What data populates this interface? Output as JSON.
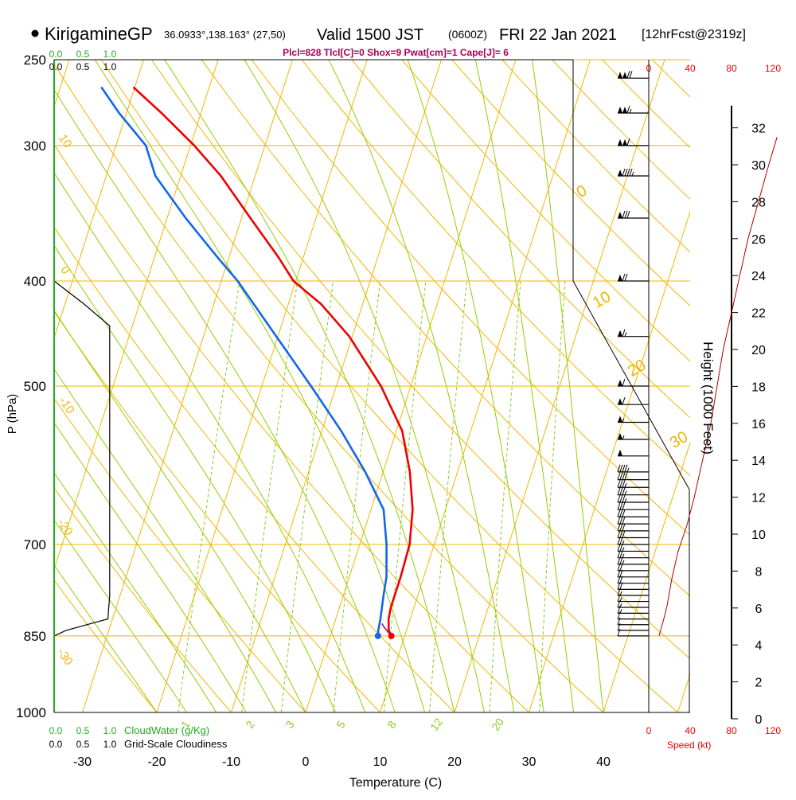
{
  "header": {
    "station": "KirigamineGP",
    "coords": "36.0933°,138.163° (27,50)",
    "valid": "Valid 1500 JST",
    "zulu": "(0600Z)",
    "date": "FRI 22 Jan 2021",
    "forecast": "[12hrFcst@2319z]",
    "indices": "Plcl=828 Tlcl[C]=0 Shox=9 Pwat[cm]=1 Cape[J]= 6"
  },
  "colors": {
    "temperature": "#ee0000",
    "dewpoint": "#1166ee",
    "isotherm": "#f2b500",
    "dry_adiabat": "#f2b500",
    "moist_adiabat": "#99cc00",
    "mixing_ratio": "#88cc22",
    "cloud_water": "#22aa22",
    "indices": "#aa0055",
    "speed": "#ee0000"
  },
  "chart_data": {
    "type": "skew-t",
    "xlabel": "Temperature (C)",
    "ylabel": "P (hPa)",
    "y2label": "Height (1000 Feet)",
    "temp_ticks": [
      "-30",
      "-20",
      "-10",
      "0",
      "10",
      "20",
      "30",
      "40"
    ],
    "pressure_ticks": [
      "250",
      "300",
      "400",
      "500",
      "700",
      "850",
      "1000"
    ],
    "height_ticks": [
      "0",
      "2",
      "4",
      "6",
      "8",
      "10",
      "12",
      "14",
      "16",
      "18",
      "20",
      "22",
      "24",
      "26",
      "28",
      "30",
      "32"
    ],
    "mixing_ratio_labels": [
      "1",
      "2",
      "3",
      "5",
      "8",
      "12",
      "20"
    ],
    "dry_adiabat_labels": [
      "10",
      "0",
      "-10",
      "-20",
      "-30"
    ],
    "moist_adiabat_labels": [
      "0",
      "10",
      "20",
      "30"
    ],
    "cloud_water": {
      "label": "CloudWater (g/Kg)",
      "ticks": [
        "0.0",
        "0.5",
        "1.0"
      ]
    },
    "cloudiness": {
      "label": "Grid-Scale Cloudiness",
      "ticks": [
        "0.0",
        "0.5",
        "1.0"
      ]
    },
    "speed": {
      "label": "Speed (kt)",
      "ticks": [
        "0",
        "40",
        "80",
        "120"
      ]
    },
    "temperature": [
      {
        "p": 850,
        "t": 8.2
      },
      {
        "p": 840,
        "t": 7.6
      },
      {
        "p": 820,
        "t": 7.1
      },
      {
        "p": 800,
        "t": 6.9
      },
      {
        "p": 750,
        "t": 6.9
      },
      {
        "p": 700,
        "t": 6.7
      },
      {
        "p": 650,
        "t": 5.6
      },
      {
        "p": 600,
        "t": 3.6
      },
      {
        "p": 550,
        "t": 0.8
      },
      {
        "p": 500,
        "t": -4.0
      },
      {
        "p": 450,
        "t": -10.4
      },
      {
        "p": 420,
        "t": -15.6
      },
      {
        "p": 400,
        "t": -20.3
      },
      {
        "p": 380,
        "t": -23.4
      },
      {
        "p": 350,
        "t": -28.8
      },
      {
        "p": 320,
        "t": -34.6
      },
      {
        "p": 300,
        "t": -39.5
      },
      {
        "p": 280,
        "t": -45.3
      },
      {
        "p": 265,
        "t": -50.2
      }
    ],
    "dewpoint": [
      {
        "p": 850,
        "t": 6.4
      },
      {
        "p": 840,
        "t": 6.2
      },
      {
        "p": 820,
        "t": 6.0
      },
      {
        "p": 780,
        "t": 5.4
      },
      {
        "p": 750,
        "t": 5.0
      },
      {
        "p": 700,
        "t": 3.6
      },
      {
        "p": 650,
        "t": 1.7
      },
      {
        "p": 600,
        "t": -2.4
      },
      {
        "p": 550,
        "t": -7.4
      },
      {
        "p": 500,
        "t": -13.4
      },
      {
        "p": 450,
        "t": -20.2
      },
      {
        "p": 400,
        "t": -27.8
      },
      {
        "p": 380,
        "t": -31.6
      },
      {
        "p": 350,
        "t": -37.5
      },
      {
        "p": 320,
        "t": -43.4
      },
      {
        "p": 300,
        "t": -46.0
      },
      {
        "p": 280,
        "t": -51.0
      },
      {
        "p": 265,
        "t": -54.5
      }
    ],
    "parcel": [
      {
        "p": 850,
        "t": 8.2
      },
      {
        "p": 835,
        "t": 6.9
      },
      {
        "p": 828,
        "t": 6.4
      }
    ],
    "cloudiness_profile": [
      {
        "p": 850,
        "c": 0.0
      },
      {
        "p": 840,
        "c": 0.2
      },
      {
        "p": 820,
        "c": 0.9
      },
      {
        "p": 780,
        "c": 0.93
      },
      {
        "p": 700,
        "c": 0.93
      },
      {
        "p": 600,
        "c": 0.93
      },
      {
        "p": 500,
        "c": 0.93
      },
      {
        "p": 450,
        "c": 0.93
      },
      {
        "p": 440,
        "c": 0.93
      },
      {
        "p": 420,
        "c": 0.5
      },
      {
        "p": 400,
        "c": 0.0
      }
    ],
    "wind_speed_profile": [
      {
        "h": 4.5,
        "s": 10
      },
      {
        "h": 5.5,
        "s": 15
      },
      {
        "h": 6.2,
        "s": 18
      },
      {
        "h": 7.5,
        "s": 22
      },
      {
        "h": 9.0,
        "s": 28
      },
      {
        "h": 10.5,
        "s": 37
      },
      {
        "h": 12.0,
        "s": 44
      },
      {
        "h": 14.0,
        "s": 52
      },
      {
        "h": 16.0,
        "s": 60
      },
      {
        "h": 18.0,
        "s": 66
      },
      {
        "h": 20.0,
        "s": 72
      },
      {
        "h": 22.0,
        "s": 80
      },
      {
        "h": 24.0,
        "s": 88
      },
      {
        "h": 26.0,
        "s": 96
      },
      {
        "h": 28.0,
        "s": 106
      },
      {
        "h": 30.0,
        "s": 116
      },
      {
        "h": 31.5,
        "s": 124
      }
    ],
    "barbs": [
      {
        "p": 850,
        "s": 10
      },
      {
        "p": 840,
        "s": 11
      },
      {
        "p": 830,
        "s": 12
      },
      {
        "p": 820,
        "s": 13
      },
      {
        "p": 810,
        "s": 15
      },
      {
        "p": 800,
        "s": 16
      },
      {
        "p": 790,
        "s": 17
      },
      {
        "p": 780,
        "s": 18
      },
      {
        "p": 770,
        "s": 20
      },
      {
        "p": 760,
        "s": 21
      },
      {
        "p": 750,
        "s": 22
      },
      {
        "p": 740,
        "s": 24
      },
      {
        "p": 730,
        "s": 25
      },
      {
        "p": 720,
        "s": 27
      },
      {
        "p": 710,
        "s": 28
      },
      {
        "p": 700,
        "s": 29
      },
      {
        "p": 690,
        "s": 30
      },
      {
        "p": 680,
        "s": 31
      },
      {
        "p": 670,
        "s": 32
      },
      {
        "p": 660,
        "s": 33
      },
      {
        "p": 650,
        "s": 34
      },
      {
        "p": 640,
        "s": 35
      },
      {
        "p": 630,
        "s": 36
      },
      {
        "p": 620,
        "s": 37
      },
      {
        "p": 610,
        "s": 40
      },
      {
        "p": 600,
        "s": 45
      },
      {
        "p": 580,
        "s": 50
      },
      {
        "p": 560,
        "s": 55
      },
      {
        "p": 540,
        "s": 55
      },
      {
        "p": 520,
        "s": 60
      },
      {
        "p": 500,
        "s": 60
      },
      {
        "p": 450,
        "s": 65
      },
      {
        "p": 400,
        "s": 70
      },
      {
        "p": 350,
        "s": 80
      },
      {
        "p": 320,
        "s": 95
      },
      {
        "p": 300,
        "s": 110
      },
      {
        "p": 280,
        "s": 115
      },
      {
        "p": 260,
        "s": 120
      }
    ]
  }
}
